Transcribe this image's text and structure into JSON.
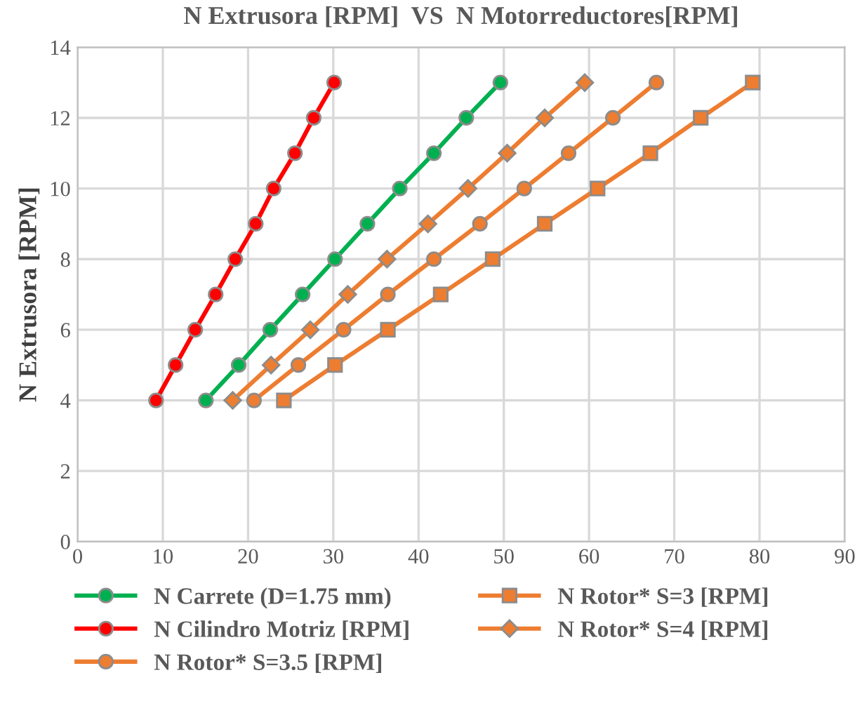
{
  "chart_data": {
    "type": "line",
    "title": "N Extrusora [RPM]  VS  N Motorreductores[RPM]",
    "ylabel": "N Extrusora [RPM]",
    "xlim": [
      0,
      90
    ],
    "xticks": [
      0,
      10,
      20,
      30,
      40,
      50,
      60,
      70,
      80,
      90
    ],
    "ylim": [
      0,
      14
    ],
    "yticks": [
      0,
      2,
      4,
      6,
      8,
      10,
      12,
      14
    ],
    "grid": true,
    "legend": "bottom",
    "series": [
      {
        "name": "N Carrete (D=1.75 mm)",
        "color": "#00b050",
        "marker": "circle",
        "x": [
          15.05,
          18.9,
          22.6,
          26.4,
          30.2,
          34.0,
          37.8,
          41.8,
          45.6,
          49.6
        ],
        "values": [
          4,
          5,
          6,
          7,
          8,
          9,
          10,
          11,
          12,
          13
        ]
      },
      {
        "name": "N Cilindro Motriz [RPM]",
        "color": "#ff0000",
        "marker": "circle",
        "x": [
          9.2,
          11.5,
          13.8,
          16.2,
          18.5,
          20.9,
          23.0,
          25.5,
          27.7,
          30.1
        ],
        "values": [
          4,
          5,
          6,
          7,
          8,
          9,
          10,
          11,
          12,
          13
        ]
      },
      {
        "name": "N Rotor* S=3.5 [RPM]",
        "color": "#ed7d31",
        "marker": "circle",
        "x": [
          20.7,
          25.9,
          31.2,
          36.4,
          41.8,
          47.2,
          52.4,
          57.6,
          62.8,
          67.9
        ],
        "values": [
          4,
          5,
          6,
          7,
          8,
          9,
          10,
          11,
          12,
          13
        ]
      },
      {
        "name": "N Rotor* S=3 [RPM]",
        "color": "#ed7d31",
        "marker": "square",
        "x": [
          24.2,
          30.2,
          36.4,
          42.6,
          48.7,
          54.8,
          61.0,
          67.2,
          73.1,
          79.2
        ],
        "values": [
          4,
          5,
          6,
          7,
          8,
          9,
          10,
          11,
          12,
          13
        ]
      },
      {
        "name": "N Rotor* S=4 [RPM]",
        "color": "#ed7d31",
        "marker": "diamond",
        "x": [
          18.2,
          22.7,
          27.3,
          31.7,
          36.3,
          41.1,
          45.8,
          50.4,
          54.8,
          59.5
        ],
        "values": [
          4,
          5,
          6,
          7,
          8,
          9,
          10,
          11,
          12,
          13
        ]
      }
    ]
  }
}
